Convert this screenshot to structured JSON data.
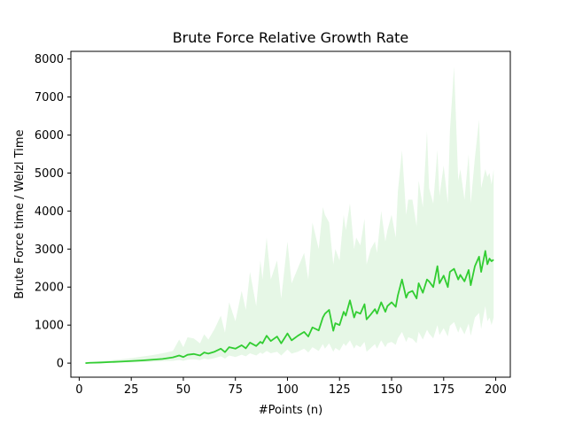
{
  "chart_data": {
    "type": "line",
    "title": "Brute Force Relative Growth Rate",
    "xlabel": "#Points (n)",
    "ylabel": "Brute Force time / Welzl Time",
    "xlim": [
      -4,
      207
    ],
    "ylim": [
      -370,
      8200
    ],
    "xticks": [
      0,
      25,
      50,
      75,
      100,
      125,
      150,
      175,
      200
    ],
    "yticks": [
      0,
      1000,
      2000,
      3000,
      4000,
      5000,
      6000,
      7000,
      8000
    ],
    "grid": false,
    "legend": "none",
    "series": [
      {
        "line_color": "#32cd32",
        "band_color": "#e6f7e6",
        "x": [
          3,
          5,
          10,
          15,
          20,
          25,
          30,
          35,
          40,
          45,
          48,
          50,
          52,
          55,
          58,
          60,
          62,
          65,
          68,
          70,
          72,
          75,
          78,
          80,
          82,
          85,
          87,
          88,
          90,
          92,
          95,
          97,
          100,
          102,
          105,
          108,
          110,
          112,
          115,
          117,
          118,
          120,
          122,
          123,
          125,
          127,
          128,
          130,
          132,
          133,
          135,
          137,
          138,
          140,
          142,
          143,
          145,
          147,
          148,
          150,
          152,
          153,
          155,
          157,
          158,
          160,
          162,
          163,
          165,
          167,
          168,
          170,
          172,
          173,
          175,
          177,
          178,
          180,
          182,
          183,
          185,
          187,
          188,
          190,
          192,
          193,
          195,
          196,
          197,
          198,
          199
        ],
        "y": [
          0,
          8,
          16,
          28,
          40,
          55,
          70,
          90,
          110,
          150,
          200,
          160,
          220,
          240,
          200,
          280,
          250,
          300,
          380,
          290,
          420,
          380,
          470,
          390,
          540,
          450,
          560,
          520,
          720,
          580,
          700,
          520,
          780,
          600,
          720,
          820,
          700,
          940,
          860,
          1200,
          1300,
          1400,
          850,
          1050,
          1000,
          1350,
          1250,
          1650,
          1200,
          1350,
          1300,
          1550,
          1150,
          1280,
          1420,
          1300,
          1600,
          1350,
          1500,
          1600,
          1480,
          1780,
          2200,
          1720,
          1850,
          1900,
          1700,
          2100,
          1850,
          2200,
          2150,
          2000,
          2550,
          2100,
          2300,
          2000,
          2400,
          2480,
          2200,
          2320,
          2150,
          2450,
          2050,
          2550,
          2800,
          2400,
          2950,
          2600,
          2750,
          2680,
          2720
        ],
        "y_low": [
          0,
          0,
          5,
          10,
          15,
          20,
          25,
          35,
          50,
          60,
          80,
          60,
          90,
          100,
          80,
          120,
          100,
          130,
          180,
          120,
          200,
          160,
          220,
          180,
          260,
          200,
          280,
          240,
          320,
          260,
          300,
          200,
          360,
          250,
          300,
          380,
          280,
          420,
          320,
          500,
          380,
          520,
          300,
          400,
          330,
          520,
          450,
          600,
          380,
          480,
          420,
          560,
          300,
          400,
          500,
          380,
          600,
          420,
          520,
          560,
          480,
          650,
          820,
          560,
          680,
          640,
          520,
          820,
          620,
          880,
          780,
          650,
          1000,
          740,
          920,
          700,
          980,
          1080,
          800,
          960,
          760,
          1040,
          720,
          1200,
          1320,
          900,
          1500,
          1100,
          1200,
          1000,
          1200
        ],
        "y_high": [
          20,
          30,
          50,
          75,
          100,
          130,
          170,
          210,
          260,
          320,
          620,
          420,
          680,
          650,
          520,
          760,
          620,
          900,
          1250,
          800,
          1600,
          1100,
          1900,
          1400,
          2400,
          1500,
          2700,
          2200,
          3300,
          2200,
          2700,
          1700,
          3200,
          2100,
          2500,
          2900,
          2200,
          3700,
          3000,
          4100,
          3900,
          3700,
          2600,
          3000,
          2700,
          3900,
          3500,
          4200,
          3000,
          3300,
          3100,
          3800,
          2600,
          3000,
          3200,
          2900,
          4000,
          3200,
          3500,
          3900,
          3300,
          4500,
          5600,
          3900,
          4300,
          4300,
          3600,
          4800,
          4100,
          6100,
          4600,
          4200,
          5600,
          4400,
          5200,
          4200,
          6100,
          7800,
          4800,
          5100,
          4300,
          5500,
          4200,
          5400,
          6400,
          4600,
          5100,
          4900,
          5000,
          4700,
          5100
        ]
      }
    ]
  }
}
